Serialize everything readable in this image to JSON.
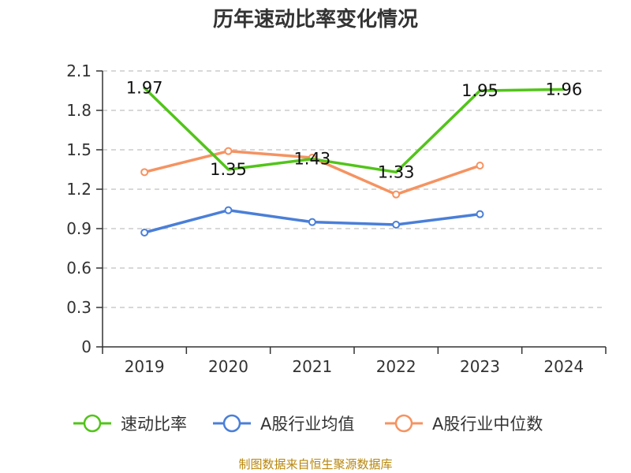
{
  "chart_data": {
    "type": "line",
    "title": "历年速动比率变化情况",
    "xlabel": "",
    "ylabel": "",
    "categories": [
      "2019",
      "2020",
      "2021",
      "2022",
      "2023",
      "2024"
    ],
    "ylim": [
      0,
      2.1
    ],
    "yticks": [
      0,
      0.3,
      0.6,
      0.9,
      1.2,
      1.5,
      1.8,
      2.1
    ],
    "ytick_labels": [
      "0",
      "0.3",
      "0.6",
      "0.9",
      "1.2",
      "1.5",
      "1.8",
      "2.1"
    ],
    "grid": true,
    "legend_position": "bottom",
    "series": [
      {
        "name": "速动比率",
        "color": "#52c41a",
        "values": [
          1.97,
          1.35,
          1.43,
          1.33,
          1.95,
          1.96
        ],
        "labels": [
          "1.97",
          "1.35",
          "1.43",
          "1.33",
          "1.95",
          "1.96"
        ],
        "markers": false
      },
      {
        "name": "A股行业均值",
        "color": "#4a7fd8",
        "values": [
          0.87,
          1.04,
          0.95,
          0.93,
          1.01,
          null
        ],
        "markers": true
      },
      {
        "name": "A股行业中位数",
        "color": "#f59361",
        "values": [
          1.33,
          1.49,
          1.44,
          1.16,
          1.38,
          null
        ],
        "markers": true
      }
    ]
  },
  "source": "制图数据来自恒生聚源数据库"
}
